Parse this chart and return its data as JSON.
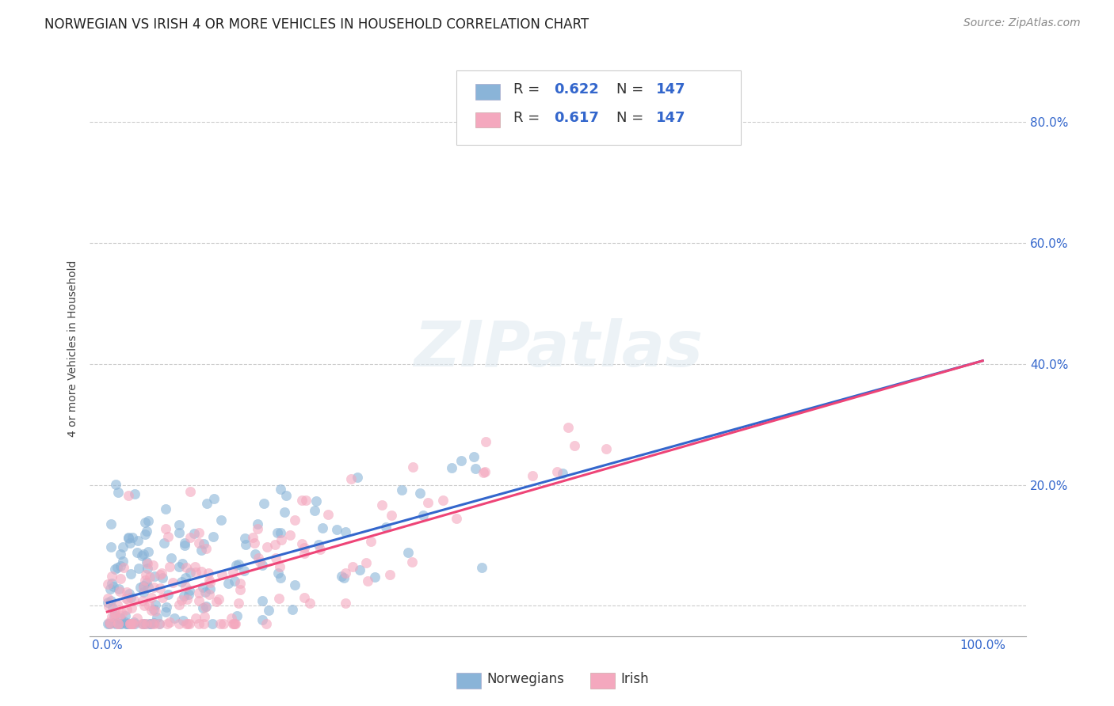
{
  "title": "NORWEGIAN VS IRISH 4 OR MORE VEHICLES IN HOUSEHOLD CORRELATION CHART",
  "source": "Source: ZipAtlas.com",
  "ylabel": "4 or more Vehicles in Household",
  "watermark": "ZIPatlas",
  "legend_labels": [
    "Norwegians",
    "Irish"
  ],
  "blue_color": "#8ab4d8",
  "pink_color": "#f4a8be",
  "blue_line_color": "#3366cc",
  "pink_line_color": "#ee4477",
  "xlim": [
    -0.02,
    1.05
  ],
  "ylim": [
    -0.05,
    0.9
  ],
  "xticks": [
    0.0,
    0.2,
    0.4,
    0.6,
    0.8,
    1.0
  ],
  "yticks": [
    0.0,
    0.2,
    0.4,
    0.6,
    0.8
  ],
  "xticklabels": [
    "0.0%",
    "",
    "",
    "",
    "",
    "100.0%"
  ],
  "yticklabels": [
    "",
    "20.0%",
    "40.0%",
    "60.0%",
    "80.0%"
  ],
  "background_color": "#ffffff",
  "grid_color": "#cccccc",
  "title_fontsize": 12,
  "axis_label_fontsize": 10,
  "tick_fontsize": 11,
  "legend_fontsize": 13,
  "source_fontsize": 10,
  "scatter_alpha": 0.6,
  "scatter_size": 80,
  "seed": 42,
  "n_points": 147,
  "blue_intercept": 0.005,
  "blue_slope": 0.4,
  "pink_intercept": -0.01,
  "pink_slope": 0.415
}
